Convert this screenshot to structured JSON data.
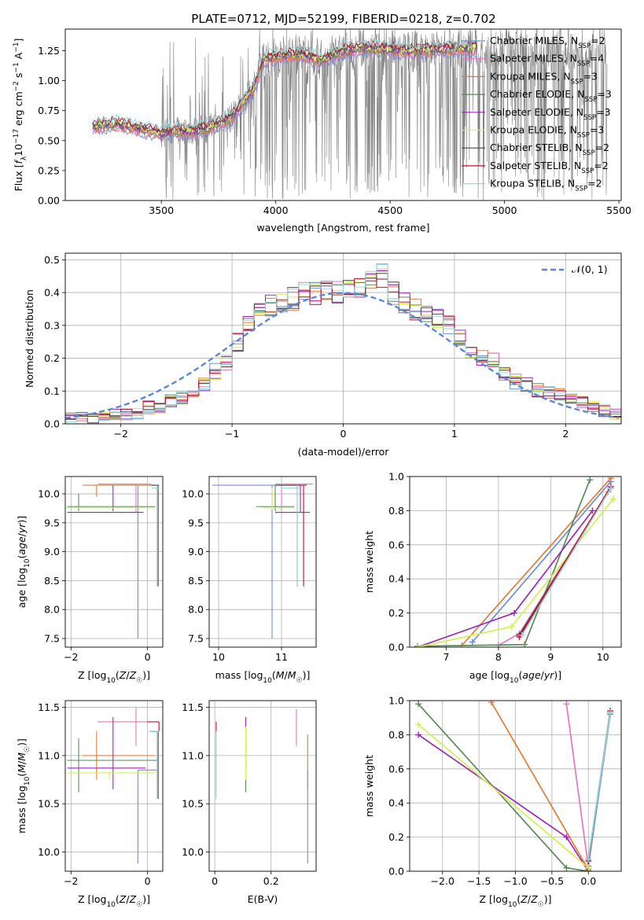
{
  "page_title": "PLATE=0712, MJD=52199, FIBERID=0218, z=0.702",
  "colors": {
    "chabrier_miles": "#6a8fdc",
    "salpeter_miles": "#e377c2",
    "kroupa_miles": "#e07b39",
    "chabrier_elodie": "#5a8a5a",
    "salpeter_elodie": "#9b27b6",
    "kroupa_elodie": "#d4f04f",
    "chabrier_stelib": "#444444",
    "salpeter_stelib": "#c0102a",
    "kroupa_stelib": "#8fd8d8",
    "data_gray": "#808080",
    "normal_curve": "#5b87d8"
  },
  "legend_models": [
    {
      "text": "Chabrier MILES, N",
      "sub": "SSP",
      "suffix": "=2",
      "color": "#6a8fdc"
    },
    {
      "text": "Salpeter MILES, N",
      "sub": "SSP",
      "suffix": "=4",
      "color": "#e377c2"
    },
    {
      "text": "Kroupa MILES, N",
      "sub": "SSP",
      "suffix": "=3",
      "color": "#e07b39"
    },
    {
      "text": "Chabrier ELODIE, N",
      "sub": "SSP",
      "suffix": "=3",
      "color": "#5a8a5a"
    },
    {
      "text": "Salpeter ELODIE, N",
      "sub": "SSP",
      "suffix": "=3",
      "color": "#9b27b6"
    },
    {
      "text": "Kroupa ELODIE, N",
      "sub": "SSP",
      "suffix": "=3",
      "color": "#d4f04f"
    },
    {
      "text": "Chabrier STELIB, N",
      "sub": "SSP",
      "suffix": "=2",
      "color": "#444444"
    },
    {
      "text": "Salpeter STELIB, N",
      "sub": "SSP",
      "suffix": "=2",
      "color": "#c0102a"
    },
    {
      "text": "Kroupa STELIB, N",
      "sub": "SSP",
      "suffix": "=2",
      "color": "#8fd8d8"
    }
  ],
  "chart_data": [
    {
      "id": "spectrum",
      "type": "line",
      "title": "PLATE=0712, MJD=52199, FIBERID=0218, z=0.702",
      "xlabel": "wavelength [Angstrom, rest frame]",
      "ylabel": "Flux [f_λ 10^-17 erg cm^-2 s^-1 A^-1]",
      "xlim": [
        3080,
        5510
      ],
      "ylim": [
        0,
        1.43
      ],
      "xticks": [
        3500,
        4000,
        4500,
        5000,
        5500
      ],
      "yticks": [
        0.0,
        0.25,
        0.5,
        0.75,
        1.0,
        1.25
      ],
      "ytick_labels": [
        "0.00",
        "0.25",
        "0.50",
        "0.75",
        "1.00",
        "1.25"
      ],
      "model_continuum": {
        "x": [
          3200,
          3300,
          3400,
          3500,
          3550,
          3600,
          3700,
          3800,
          3900,
          3950,
          4000,
          4100,
          4200,
          4300,
          4400,
          4500,
          4600,
          4700,
          4800
        ],
        "y": [
          0.62,
          0.64,
          0.6,
          0.56,
          0.58,
          0.57,
          0.6,
          0.68,
          0.92,
          1.18,
          1.2,
          1.22,
          1.17,
          1.25,
          1.27,
          1.26,
          1.24,
          1.26,
          1.27
        ]
      },
      "noisy_region_x": [
        3500,
        5450
      ]
    },
    {
      "id": "residual_histogram",
      "type": "histogram",
      "xlabel": "(data-model)/error",
      "ylabel": "Normed distribution",
      "xlim": [
        -2.5,
        2.5
      ],
      "ylim": [
        0,
        0.52
      ],
      "xticks": [
        -2,
        -1,
        0,
        1,
        2
      ],
      "yticks": [
        0.0,
        0.1,
        0.2,
        0.3,
        0.4,
        0.5
      ],
      "ytick_labels": [
        "0.0",
        "0.1",
        "0.2",
        "0.3",
        "0.4",
        "0.5"
      ],
      "legend": "N(0,1)",
      "bin_edges_start": -2.5,
      "bin_width": 0.1,
      "base_values": [
        0.02,
        0.02,
        0.02,
        0.02,
        0.03,
        0.03,
        0.03,
        0.05,
        0.05,
        0.07,
        0.08,
        0.09,
        0.12,
        0.16,
        0.19,
        0.25,
        0.31,
        0.34,
        0.36,
        0.37,
        0.38,
        0.4,
        0.4,
        0.41,
        0.4,
        0.41,
        0.42,
        0.43,
        0.45,
        0.4,
        0.37,
        0.35,
        0.34,
        0.32,
        0.3,
        0.26,
        0.22,
        0.2,
        0.19,
        0.15,
        0.13,
        0.12,
        0.1,
        0.1,
        0.09,
        0.08,
        0.07,
        0.05,
        0.04,
        0.03
      ]
    },
    {
      "id": "age_vs_Z",
      "type": "errorbar",
      "xlabel": "Z [log10(Z/Z☉)]",
      "ylabel": "age [log10(age/yr)]",
      "xlim": [
        -2.15,
        0.4
      ],
      "ylim": [
        7.35,
        10.3
      ],
      "xticks": [
        -2,
        0
      ],
      "yticks": [
        7.5,
        8.0,
        8.5,
        9.0,
        9.5,
        10.0
      ],
      "ytick_labels": [
        "7.5",
        "8.0",
        "8.5",
        "9.0",
        "9.5",
        "10.0"
      ]
    },
    {
      "id": "age_vs_mass",
      "type": "errorbar",
      "xlabel": "mass [log10(M/M☉)]",
      "ylabel": "",
      "xlim": [
        9.85,
        11.55
      ],
      "ylim": [
        7.35,
        10.3
      ],
      "xticks": [
        10,
        11
      ],
      "yticks": [
        7.5,
        8.0,
        8.5,
        9.0,
        9.5,
        10.0
      ],
      "ytick_labels": [
        "7.5",
        "8.0",
        "8.5",
        "9.0",
        "9.5",
        "10.0"
      ]
    },
    {
      "id": "massweight_vs_age",
      "type": "line",
      "xlabel": "age [log10(age/yr)]",
      "ylabel": "mass weight",
      "xlim": [
        6.3,
        10.35
      ],
      "ylim": [
        0,
        1
      ],
      "xticks": [
        7,
        8,
        9,
        10
      ],
      "yticks": [
        0.0,
        0.2,
        0.4,
        0.6,
        0.8,
        1.0
      ],
      "ytick_labels": [
        "0.0",
        "0.2",
        "0.4",
        "0.6",
        "0.8",
        "1.0"
      ],
      "series": [
        {
          "color": "#6a8fdc",
          "x": [
            7.5,
            10.15
          ],
          "y": [
            0.03,
            0.97
          ]
        },
        {
          "color": "#e377c2",
          "x": [
            8.0,
            8.4,
            10.1
          ],
          "y": [
            0.01,
            0.08,
            0.91
          ]
        },
        {
          "color": "#e07b39",
          "x": [
            7.3,
            10.15
          ],
          "y": [
            0.01,
            0.99
          ]
        },
        {
          "color": "#5a8a5a",
          "x": [
            6.45,
            8.5,
            9.75
          ],
          "y": [
            0.005,
            0.015,
            0.98
          ]
        },
        {
          "color": "#9b27b6",
          "x": [
            6.45,
            8.3,
            9.8
          ],
          "y": [
            0.0,
            0.2,
            0.8
          ]
        },
        {
          "color": "#d4f04f",
          "x": [
            6.45,
            8.25,
            10.2
          ],
          "y": [
            0.0,
            0.12,
            0.87
          ]
        },
        {
          "color": "#444444",
          "x": [
            8.4,
            10.15
          ],
          "y": [
            0.07,
            0.93
          ]
        },
        {
          "color": "#c0102a",
          "x": [
            8.4,
            10.15
          ],
          "y": [
            0.06,
            0.94
          ]
        },
        {
          "color": "#8fd8d8",
          "x": [
            8.45,
            10.15
          ],
          "y": [
            0.07,
            0.93
          ]
        }
      ]
    },
    {
      "id": "mass_vs_Z",
      "type": "errorbar",
      "xlabel": "Z [log10(Z/Z☉)]",
      "ylabel": "mass [log10(M/M☉)]",
      "xlim": [
        -2.15,
        0.4
      ],
      "ylim": [
        9.8,
        11.57
      ],
      "xticks": [
        -2,
        0
      ],
      "yticks": [
        10.0,
        10.5,
        11.0,
        11.5
      ],
      "ytick_labels": [
        "10.0",
        "10.5",
        "11.0",
        "11.5"
      ]
    },
    {
      "id": "mass_vs_EBV",
      "type": "errorbar",
      "xlabel": "E(B-V)",
      "ylabel": "",
      "xlim": [
        -0.02,
        0.36
      ],
      "ylim": [
        9.8,
        11.57
      ],
      "xticks": [
        0.0,
        0.2
      ],
      "yticks": [
        10.0,
        10.5,
        11.0,
        11.5
      ],
      "ytick_labels": [
        "10.0",
        "10.5",
        "11.0",
        "11.5"
      ]
    },
    {
      "id": "massweight_vs_Z",
      "type": "line",
      "xlabel": "Z [log10(Z/Z☉)]",
      "ylabel": "mass weight",
      "xlim": [
        -2.45,
        0.45
      ],
      "ylim": [
        0,
        1
      ],
      "xticks": [
        -2.0,
        -1.5,
        -1.0,
        -0.5,
        0.0
      ],
      "xtick_labels": [
        "−2.0",
        "−1.5",
        "−1.0",
        "−0.5",
        "0.0"
      ],
      "yticks": [
        0.0,
        0.2,
        0.4,
        0.6,
        0.8,
        1.0
      ],
      "ytick_labels": [
        "0.0",
        "0.2",
        "0.4",
        "0.6",
        "0.8",
        "1.0"
      ],
      "series": [
        {
          "color": "#6a8fdc",
          "x": [
            0.0,
            0.3
          ],
          "y": [
            0.03,
            0.92
          ]
        },
        {
          "color": "#e377c2",
          "x": [
            -0.3,
            0.0
          ],
          "y": [
            0.98,
            0.02
          ]
        },
        {
          "color": "#e07b39",
          "x": [
            -1.33,
            0.0
          ],
          "y": [
            0.99,
            0.01
          ]
        },
        {
          "color": "#5a8a5a",
          "x": [
            -2.33,
            -0.3,
            0.0
          ],
          "y": [
            0.98,
            0.02,
            0.0
          ]
        },
        {
          "color": "#9b27b6",
          "x": [
            -2.33,
            -0.3,
            0.0
          ],
          "y": [
            0.8,
            0.2,
            0.0
          ]
        },
        {
          "color": "#d4f04f",
          "x": [
            -2.33,
            0.0
          ],
          "y": [
            0.86,
            0.02
          ]
        },
        {
          "color": "#444444",
          "x": [
            0.0,
            0.3
          ],
          "y": [
            0.07,
            0.93
          ]
        },
        {
          "color": "#c0102a",
          "x": [
            0.0,
            0.3
          ],
          "y": [
            0.06,
            0.94
          ]
        },
        {
          "color": "#8fd8d8",
          "x": [
            0.0,
            0.3
          ],
          "y": [
            0.07,
            0.93
          ]
        }
      ]
    }
  ]
}
